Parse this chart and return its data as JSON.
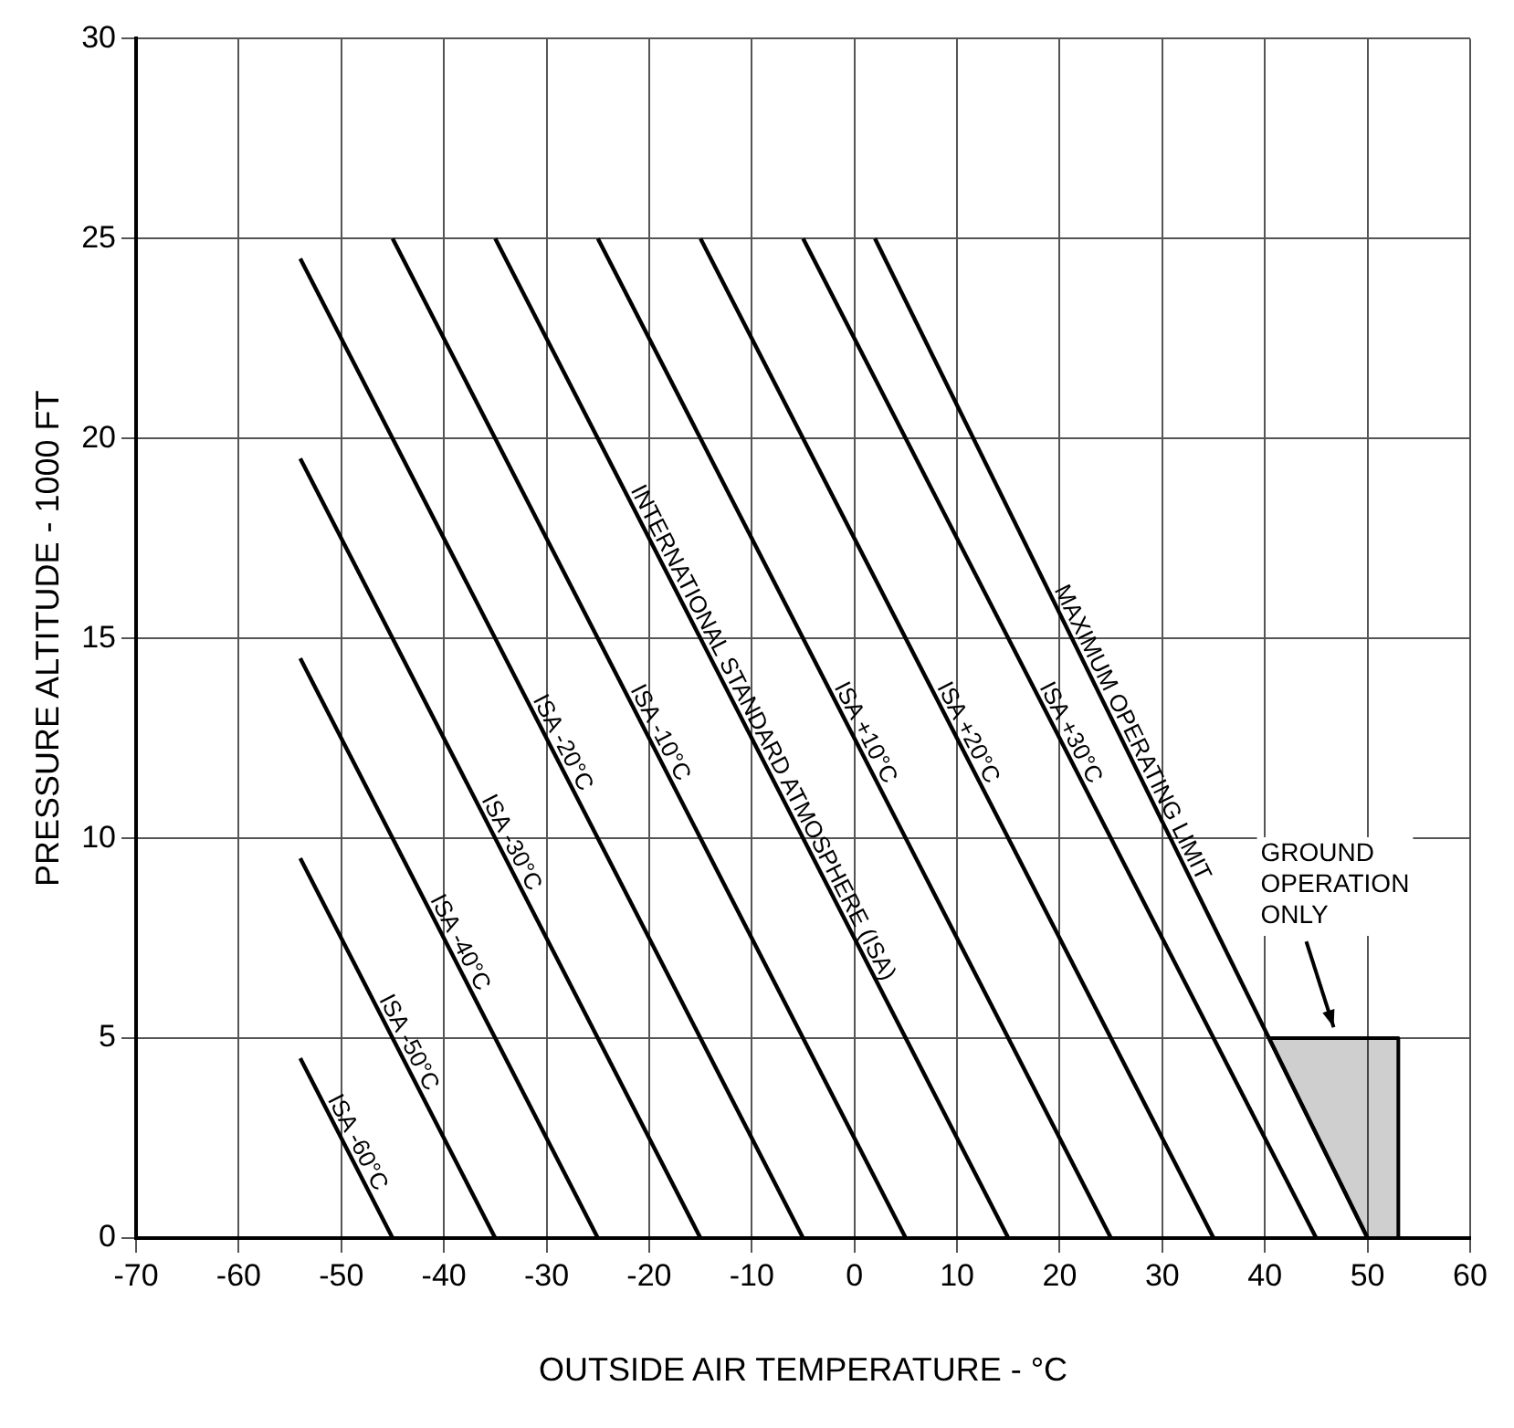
{
  "chart_data": {
    "type": "line",
    "xlabel": "OUTSIDE AIR TEMPERATURE - °C",
    "ylabel": "PRESSURE ALTITUDE - 1000 FT",
    "xlim": [
      -70,
      60
    ],
    "xticks": [
      -70,
      -60,
      -50,
      -40,
      -30,
      -20,
      -10,
      0,
      10,
      20,
      30,
      40,
      50,
      60
    ],
    "ylim": [
      0,
      30
    ],
    "yticks": [
      0,
      5,
      10,
      15,
      20,
      25,
      30
    ],
    "grid": true,
    "legend": false,
    "marker": "none",
    "line_style": "solid",
    "series": [
      {
        "name": "ISA -60°C",
        "color": "#000000",
        "x": [
          -45,
          -54
        ],
        "values": [
          0,
          4.5
        ]
      },
      {
        "name": "ISA -50°C",
        "color": "#000000",
        "x": [
          -35,
          -54
        ],
        "values": [
          0,
          9.5
        ]
      },
      {
        "name": "ISA -40°C",
        "color": "#000000",
        "x": [
          -25,
          -54
        ],
        "values": [
          0,
          14.5
        ]
      },
      {
        "name": "ISA -30°C",
        "color": "#000000",
        "x": [
          -15,
          -54
        ],
        "values": [
          0,
          19.5
        ]
      },
      {
        "name": "ISA -20°C",
        "color": "#000000",
        "x": [
          -5,
          -54
        ],
        "values": [
          0,
          24.5
        ]
      },
      {
        "name": "ISA -10°C",
        "color": "#000000",
        "x": [
          5,
          -45
        ],
        "values": [
          0,
          25
        ]
      },
      {
        "name": "INTERNATIONAL STANDARD ATMOSPHERE (ISA)",
        "color": "#000000",
        "x": [
          15,
          -35
        ],
        "values": [
          0,
          25
        ]
      },
      {
        "name": "ISA +10°C",
        "color": "#000000",
        "x": [
          25,
          -25
        ],
        "values": [
          0,
          25
        ]
      },
      {
        "name": "ISA +20°C",
        "color": "#000000",
        "x": [
          35,
          -15
        ],
        "values": [
          0,
          25
        ]
      },
      {
        "name": "ISA +30°C",
        "color": "#000000",
        "x": [
          45,
          -5
        ],
        "values": [
          0,
          25
        ]
      },
      {
        "name": "MAXIMUM OPERATING LIMIT",
        "color": "#000000",
        "x": [
          50,
          2
        ],
        "values": [
          0,
          25
        ]
      },
      {
        "type": "area",
        "color": "#000000",
        "x": [
          40.4,
          53,
          53,
          50,
          40.4
        ],
        "values": [
          5,
          5,
          0,
          0,
          5
        ]
      }
    ],
    "annotations": [
      "GROUND OPERATION ONLY"
    ]
  }
}
